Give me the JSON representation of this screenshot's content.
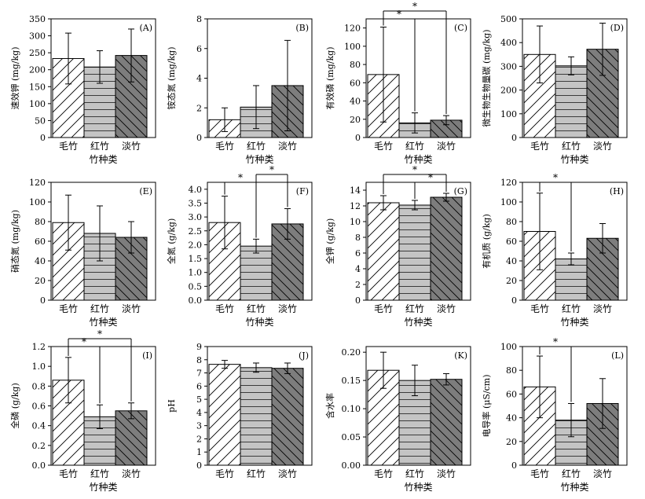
{
  "chart_data": [
    {
      "type": "bar",
      "panel": "(A)",
      "title": "",
      "xlabel": "竹种类",
      "ylabel": "速效钾 (mg/kg)",
      "categories": [
        "毛竹",
        "红竹",
        "淡竹"
      ],
      "values": [
        233,
        208,
        242
      ],
      "errors": [
        75,
        48,
        78
      ],
      "ylim": [
        0,
        350
      ],
      "yticks": [
        "0",
        "50",
        "100",
        "150",
        "200",
        "250",
        "300",
        "350"
      ],
      "significance": []
    },
    {
      "type": "bar",
      "panel": "(B)",
      "title": "",
      "xlabel": "竹种类",
      "ylabel": "铵态氮 (mg/kg)",
      "categories": [
        "毛竹",
        "红竹",
        "淡竹"
      ],
      "values": [
        1.2,
        2.05,
        3.5
      ],
      "errors": [
        0.8,
        1.45,
        3.05
      ],
      "ylim": [
        0,
        8
      ],
      "yticks": [
        "0",
        "2",
        "4",
        "6",
        "8"
      ],
      "significance": []
    },
    {
      "type": "bar",
      "panel": "(C)",
      "title": "",
      "xlabel": "竹种类",
      "ylabel": "有效磷 (mg/kg)",
      "categories": [
        "毛竹",
        "红竹",
        "淡竹"
      ],
      "values": [
        69,
        16,
        19
      ],
      "errors": [
        52,
        11,
        5
      ],
      "ylim": [
        0,
        130
      ],
      "yticks": [
        "0",
        "20",
        "40",
        "60",
        "80",
        "100",
        "120"
      ],
      "significance": [
        {
          "from": 0,
          "to": 1,
          "label": "*"
        },
        {
          "from": 0,
          "to": 2,
          "label": "*"
        }
      ]
    },
    {
      "type": "bar",
      "panel": "(D)",
      "title": "",
      "xlabel": "竹种类",
      "ylabel": "微生物生物量碳 (mg/kg)",
      "categories": [
        "毛竹",
        "红竹",
        "淡竹"
      ],
      "values": [
        350,
        302,
        372
      ],
      "errors": [
        120,
        38,
        110
      ],
      "ylim": [
        0,
        500
      ],
      "yticks": [
        "0",
        "100",
        "200",
        "300",
        "400",
        "500"
      ],
      "significance": []
    },
    {
      "type": "bar",
      "panel": "(E)",
      "title": "",
      "xlabel": "竹种类",
      "ylabel": "硝态氮 (mg/kg)",
      "categories": [
        "毛竹",
        "红竹",
        "淡竹"
      ],
      "values": [
        79,
        68,
        64
      ],
      "errors": [
        28,
        28,
        16
      ],
      "ylim": [
        0,
        120
      ],
      "yticks": [
        "0",
        "20",
        "40",
        "60",
        "80",
        "100",
        "120"
      ],
      "significance": []
    },
    {
      "type": "bar",
      "panel": "(F)",
      "title": "",
      "xlabel": "竹种类",
      "ylabel": "全氮 (g/kg)",
      "categories": [
        "毛竹",
        "红竹",
        "淡竹"
      ],
      "values": [
        2.8,
        1.95,
        2.75
      ],
      "errors": [
        0.95,
        0.25,
        0.55
      ],
      "ylim": [
        0,
        4.25
      ],
      "yticks": [
        "0.0",
        "0.5",
        "1.0",
        "1.5",
        "2.0",
        "2.5",
        "3.0",
        "3.5",
        "4.0"
      ],
      "significance": [
        {
          "from": 0,
          "to": 1,
          "label": "*"
        },
        {
          "from": 1,
          "to": 2,
          "label": "*"
        }
      ]
    },
    {
      "type": "bar",
      "panel": "(G)",
      "title": "",
      "xlabel": "竹种类",
      "ylabel": "全钾 (g/kg)",
      "categories": [
        "毛竹",
        "红竹",
        "淡竹"
      ],
      "values": [
        12.4,
        12.1,
        13.1
      ],
      "errors": [
        0.9,
        0.6,
        0.5
      ],
      "ylim": [
        0,
        15
      ],
      "yticks": [
        "0",
        "2",
        "4",
        "6",
        "8",
        "10",
        "12",
        "14"
      ],
      "significance": [
        {
          "from": 1,
          "to": 2,
          "label": "*"
        },
        {
          "from": 0,
          "to": 2,
          "label": "*"
        }
      ]
    },
    {
      "type": "bar",
      "panel": "(H)",
      "title": "",
      "xlabel": "竹种类",
      "ylabel": "有机质 (g/kg)",
      "categories": [
        "毛竹",
        "红竹",
        "淡竹"
      ],
      "values": [
        70,
        42,
        63
      ],
      "errors": [
        39,
        6,
        15
      ],
      "ylim": [
        0,
        120
      ],
      "yticks": [
        "0",
        "20",
        "40",
        "60",
        "80",
        "100",
        "120"
      ],
      "significance": [
        {
          "from": 0,
          "to": 1,
          "label": "*"
        }
      ]
    },
    {
      "type": "bar",
      "panel": "(I)",
      "title": "",
      "xlabel": "竹种类",
      "ylabel": "全磷 (g/kg)",
      "categories": [
        "毛竹",
        "红竹",
        "淡竹"
      ],
      "values": [
        0.86,
        0.49,
        0.55
      ],
      "errors": [
        0.23,
        0.12,
        0.08
      ],
      "ylim": [
        0,
        1.2
      ],
      "yticks": [
        "0.0",
        "0.2",
        "0.4",
        "0.6",
        "0.8",
        "1.0",
        "1.2"
      ],
      "significance": [
        {
          "from": 0,
          "to": 1,
          "label": "*"
        },
        {
          "from": 0,
          "to": 2,
          "label": "*"
        }
      ]
    },
    {
      "type": "bar",
      "panel": "(J)",
      "title": "",
      "xlabel": "",
      "ylabel": "pH",
      "categories": [
        "毛竹",
        "红竹",
        "淡竹"
      ],
      "values": [
        7.65,
        7.4,
        7.35
      ],
      "errors": [
        0.3,
        0.35,
        0.4
      ],
      "ylim": [
        0,
        9
      ],
      "yticks": [
        "0",
        "1",
        "2",
        "3",
        "4",
        "5",
        "6",
        "7",
        "8",
        "9"
      ],
      "significance": []
    },
    {
      "type": "bar",
      "panel": "(K)",
      "title": "",
      "xlabel": "竹种类",
      "ylabel": "含水率",
      "categories": [
        "毛竹",
        "红竹",
        "淡竹"
      ],
      "values": [
        0.168,
        0.15,
        0.152
      ],
      "errors": [
        0.032,
        0.027,
        0.01
      ],
      "ylim": [
        0,
        0.21
      ],
      "yticks": [
        "0.00",
        "0.05",
        "0.10",
        "0.15",
        "0.20"
      ],
      "significance": []
    },
    {
      "type": "bar",
      "panel": "(L)",
      "title": "",
      "xlabel": "竹种类",
      "ylabel": "电导率 (μS/cm)",
      "categories": [
        "毛竹",
        "红竹",
        "淡竹"
      ],
      "values": [
        66,
        38,
        52
      ],
      "errors": [
        26,
        14,
        21
      ],
      "ylim": [
        0,
        100
      ],
      "yticks": [
        "0",
        "20",
        "40",
        "60",
        "80",
        "100"
      ],
      "significance": [
        {
          "from": 0,
          "to": 1,
          "label": "*"
        }
      ]
    }
  ],
  "colors": {
    "bar_fills": [
      "#ffffff",
      "#c4c4c4",
      "#7d7d7d"
    ],
    "line": "#000000"
  }
}
